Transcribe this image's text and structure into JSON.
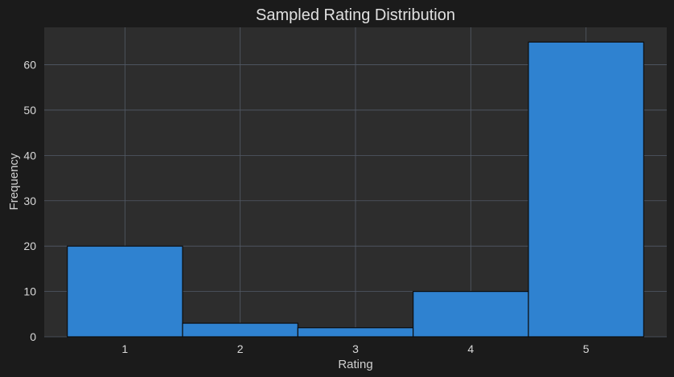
{
  "chart_data": {
    "type": "bar",
    "title": "Sampled Rating Distribution",
    "xlabel": "Rating",
    "ylabel": "Frequency",
    "categories": [
      "1",
      "2",
      "3",
      "4",
      "5"
    ],
    "values": [
      20,
      3,
      2,
      10,
      65
    ],
    "yticks": [
      "0",
      "10",
      "20",
      "30",
      "40",
      "50",
      "60"
    ],
    "ylim": [
      0,
      68.25
    ],
    "xlim": [
      0.3,
      5.7
    ],
    "grid": true,
    "colors": {
      "background": "#1b1b1b",
      "plot_area": "#2d2d2d",
      "bar_fill": "#2f82d0",
      "bar_edge": "#0d0d0d",
      "grid": "#525a66"
    }
  }
}
